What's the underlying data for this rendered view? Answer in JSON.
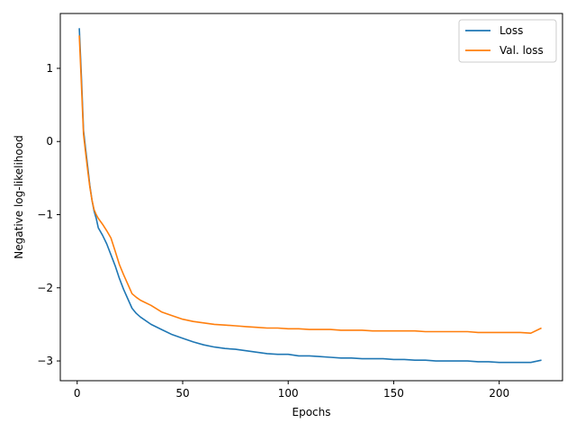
{
  "chart_data": {
    "type": "line",
    "title": "",
    "xlabel": "Epochs",
    "ylabel": "Negative log-likelihood",
    "xlim": [
      -8,
      230
    ],
    "ylim": [
      -3.27,
      1.75
    ],
    "xticks": [
      0,
      50,
      100,
      150,
      200
    ],
    "xtick_labels": [
      "0",
      "50",
      "100",
      "150",
      "200"
    ],
    "yticks": [
      1,
      0,
      -1,
      -2,
      -3
    ],
    "ytick_labels": [
      "1",
      "0",
      "−1",
      "−2",
      "−3"
    ],
    "grid": false,
    "legend_position": "top-right",
    "series": [
      {
        "name": "Loss",
        "color": "#1f77b4",
        "x": [
          1,
          2,
          3,
          4,
          5,
          6,
          7,
          8,
          9,
          10,
          12,
          14,
          16,
          18,
          20,
          22,
          24,
          26,
          28,
          30,
          35,
          40,
          45,
          50,
          55,
          60,
          65,
          70,
          75,
          80,
          85,
          90,
          95,
          100,
          105,
          110,
          115,
          120,
          125,
          130,
          135,
          140,
          145,
          150,
          155,
          160,
          165,
          170,
          175,
          180,
          185,
          190,
          195,
          200,
          205,
          210,
          215,
          220
        ],
        "y": [
          1.55,
          0.9,
          0.15,
          -0.1,
          -0.35,
          -0.6,
          -0.8,
          -0.95,
          -1.05,
          -1.18,
          -1.28,
          -1.4,
          -1.55,
          -1.7,
          -1.87,
          -2.02,
          -2.15,
          -2.28,
          -2.35,
          -2.4,
          -2.5,
          -2.57,
          -2.64,
          -2.69,
          -2.74,
          -2.78,
          -2.81,
          -2.83,
          -2.84,
          -2.86,
          -2.88,
          -2.9,
          -2.91,
          -2.91,
          -2.93,
          -2.93,
          -2.94,
          -2.95,
          -2.96,
          -2.96,
          -2.97,
          -2.97,
          -2.97,
          -2.98,
          -2.98,
          -2.99,
          -2.99,
          -3.0,
          -3.0,
          -3.0,
          -3.0,
          -3.01,
          -3.01,
          -3.02,
          -3.02,
          -3.02,
          -3.02,
          -2.99
        ]
      },
      {
        "name": "Val. loss",
        "color": "#ff7f0e",
        "x": [
          1,
          2,
          3,
          4,
          5,
          6,
          7,
          8,
          9,
          10,
          12,
          14,
          16,
          18,
          20,
          22,
          24,
          26,
          28,
          30,
          35,
          40,
          45,
          50,
          55,
          60,
          65,
          70,
          75,
          80,
          85,
          90,
          95,
          100,
          105,
          110,
          115,
          120,
          125,
          130,
          135,
          140,
          145,
          150,
          155,
          160,
          165,
          170,
          175,
          180,
          185,
          190,
          195,
          200,
          205,
          210,
          215,
          220
        ],
        "y": [
          1.45,
          0.8,
          0.1,
          -0.15,
          -0.4,
          -0.62,
          -0.8,
          -0.93,
          -1.0,
          -1.05,
          -1.13,
          -1.22,
          -1.32,
          -1.5,
          -1.68,
          -1.82,
          -1.95,
          -2.08,
          -2.13,
          -2.17,
          -2.24,
          -2.33,
          -2.38,
          -2.43,
          -2.46,
          -2.48,
          -2.5,
          -2.51,
          -2.52,
          -2.53,
          -2.54,
          -2.55,
          -2.55,
          -2.56,
          -2.56,
          -2.57,
          -2.57,
          -2.57,
          -2.58,
          -2.58,
          -2.58,
          -2.59,
          -2.59,
          -2.59,
          -2.59,
          -2.59,
          -2.6,
          -2.6,
          -2.6,
          -2.6,
          -2.6,
          -2.61,
          -2.61,
          -2.61,
          -2.61,
          -2.61,
          -2.62,
          -2.55
        ]
      }
    ]
  }
}
